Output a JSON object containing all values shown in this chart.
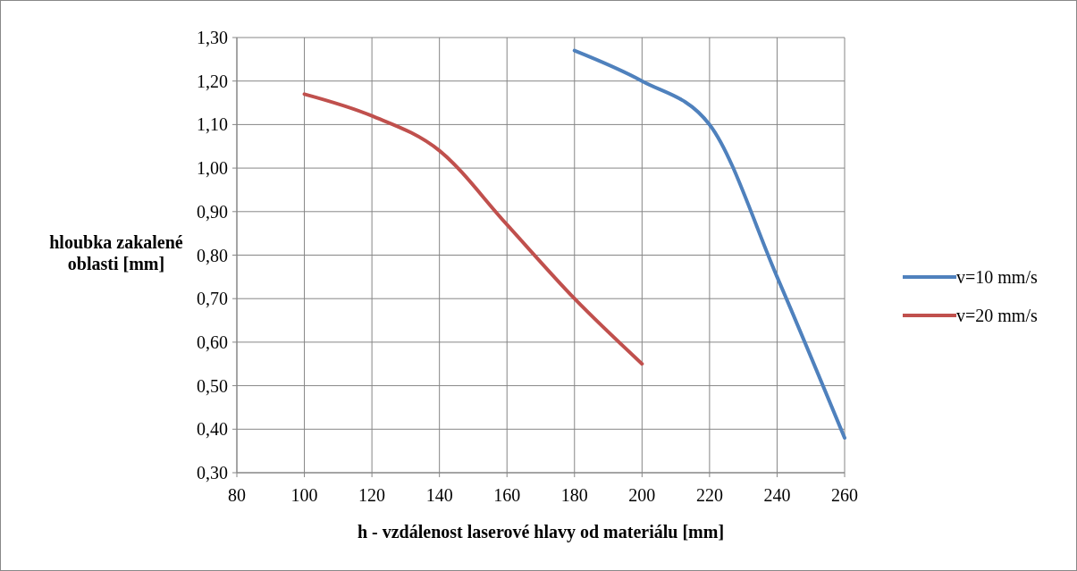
{
  "chart_data": {
    "type": "line",
    "xlabel": "h - vzdálenost laserové hlavy od materiálu [mm]",
    "ylabel": "hloubka zakalené oblasti [mm]",
    "xlim": [
      80,
      260
    ],
    "xticks": [
      80,
      100,
      120,
      140,
      160,
      180,
      200,
      220,
      240,
      260
    ],
    "ylim": [
      0.3,
      1.3
    ],
    "yticks": [
      {
        "value": 0.3,
        "label": "0,30"
      },
      {
        "value": 0.4,
        "label": "0,40"
      },
      {
        "value": 0.5,
        "label": "0,50"
      },
      {
        "value": 0.6,
        "label": "0,60"
      },
      {
        "value": 0.7,
        "label": "0,70"
      },
      {
        "value": 0.8,
        "label": "0,80"
      },
      {
        "value": 0.9,
        "label": "0,90"
      },
      {
        "value": 1.0,
        "label": "1,00"
      },
      {
        "value": 1.1,
        "label": "1,10"
      },
      {
        "value": 1.2,
        "label": "1,20"
      },
      {
        "value": 1.3,
        "label": "1,30"
      }
    ],
    "grid": true,
    "legend": "right",
    "marker": "none",
    "line_style": "solid",
    "series": [
      {
        "name": "v=10 mm/s",
        "color": "#4f81bd",
        "x": [
          180,
          200,
          220,
          240,
          260
        ],
        "values": [
          1.27,
          1.2,
          1.1,
          0.75,
          0.38
        ]
      },
      {
        "name": "v=20 mm/s",
        "color": "#c0504d",
        "x": [
          100,
          120,
          140,
          160,
          180,
          200
        ],
        "values": [
          1.17,
          1.12,
          1.04,
          0.87,
          0.7,
          0.55
        ]
      }
    ]
  }
}
